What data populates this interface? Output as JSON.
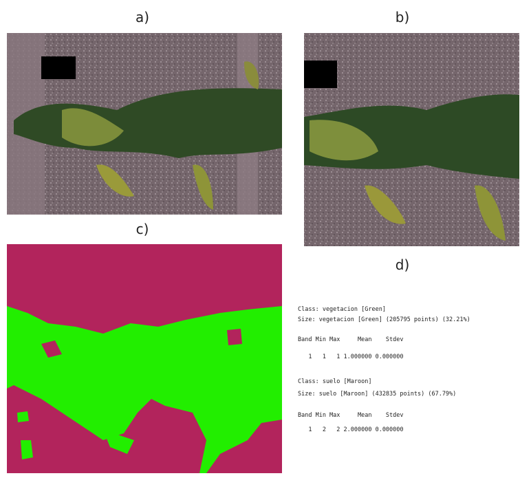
{
  "panels": [
    {
      "label": "a)"
    },
    {
      "label": "b)"
    },
    {
      "label": "c)"
    },
    {
      "label": "d)",
      "lines": [
        "Class: vegetacion [Green]",
        "Size: vegetacion [Green] (205795 points) (32.21%)",
        "Band Min Max     Mean    Stdev",
        "   1   1   1 1.000000 0.000000",
        "Class: suelo [Maroon]",
        "Size: suelo [Maroon] (432835 points) (67.79%)",
        "Band Min Max     Mean    Stdev",
        "   1   2   2 2.000000 0.000000"
      ]
    }
  ]
}
